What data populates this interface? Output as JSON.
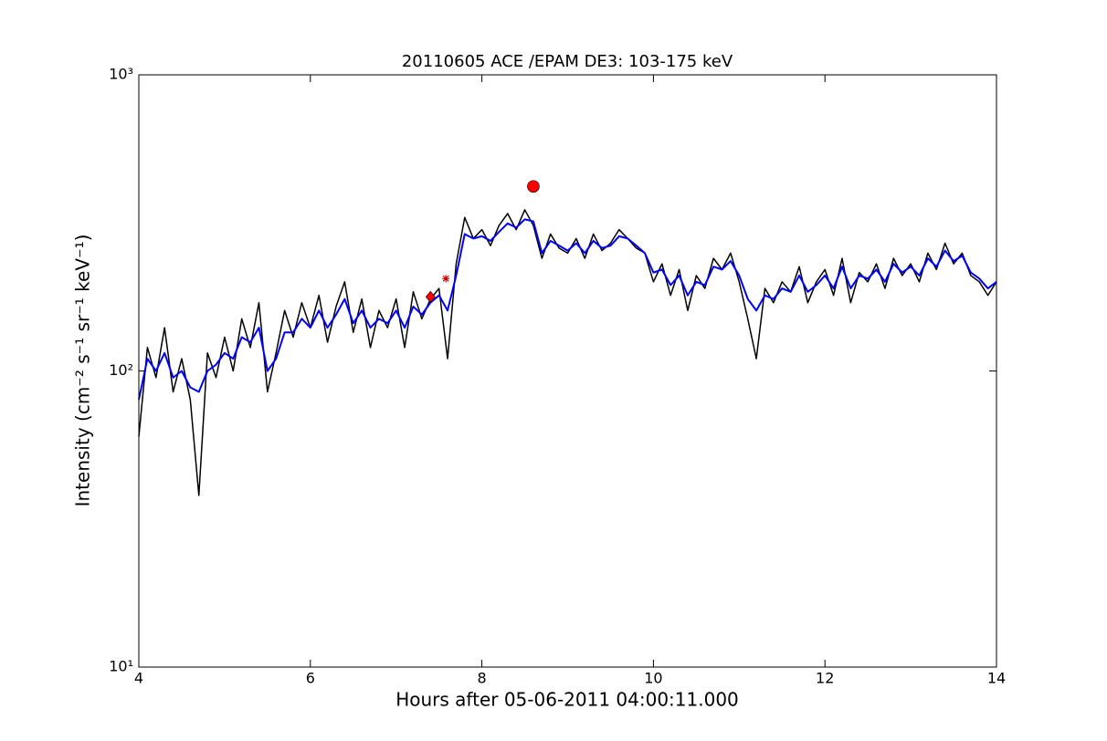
{
  "chart_data": {
    "type": "line",
    "title": "20110605 ACE /EPAM DE3: 103-175 keV",
    "x_label": "Hours after 05-06-2011 04:00:11.000",
    "y_label": "Intensity (cm⁻² s⁻¹ sr⁻¹ keV⁻¹)",
    "log_y": true,
    "grid": false,
    "xlim": [
      4,
      14
    ],
    "xticks": [
      4,
      6,
      8,
      10,
      12,
      14
    ],
    "ylim": [
      10,
      1000
    ],
    "yticks": [
      {
        "value": 10,
        "label": "10¹"
      },
      {
        "value": 100,
        "label": "10²"
      },
      {
        "value": 1000,
        "label": "10³"
      }
    ],
    "x": [
      4.0,
      4.1,
      4.2,
      4.3,
      4.4,
      4.5,
      4.6,
      4.7,
      4.8,
      4.9,
      5.0,
      5.1,
      5.2,
      5.3,
      5.4,
      5.5,
      5.6,
      5.7,
      5.8,
      5.9,
      6.0,
      6.1,
      6.2,
      6.3,
      6.4,
      6.5,
      6.6,
      6.7,
      6.8,
      6.9,
      7.0,
      7.1,
      7.2,
      7.3,
      7.4,
      7.5,
      7.6,
      7.7,
      7.8,
      7.9,
      8.0,
      8.1,
      8.2,
      8.3,
      8.4,
      8.5,
      8.6,
      8.7,
      8.8,
      8.9,
      9.0,
      9.1,
      9.2,
      9.3,
      9.4,
      9.5,
      9.6,
      9.7,
      9.8,
      9.9,
      10.0,
      10.1,
      10.2,
      10.3,
      10.4,
      10.5,
      10.6,
      10.7,
      10.8,
      10.9,
      11.0,
      11.1,
      11.2,
      11.3,
      11.4,
      11.5,
      11.6,
      11.7,
      11.8,
      11.9,
      12.0,
      12.1,
      12.2,
      12.3,
      12.4,
      12.5,
      12.6,
      12.7,
      12.8,
      12.9,
      13.0,
      13.1,
      13.2,
      13.3,
      13.4,
      13.5,
      13.6,
      13.7,
      13.8,
      13.9,
      14.0
    ],
    "series": [
      {
        "color": "#000000",
        "values": [
          60,
          120,
          95,
          140,
          85,
          110,
          80,
          38,
          115,
          95,
          130,
          100,
          150,
          120,
          170,
          85,
          115,
          160,
          130,
          170,
          140,
          180,
          125,
          165,
          200,
          135,
          175,
          120,
          160,
          140,
          175,
          120,
          185,
          150,
          175,
          190,
          110,
          230,
          330,
          280,
          300,
          265,
          310,
          340,
          300,
          350,
          310,
          240,
          290,
          260,
          250,
          280,
          240,
          290,
          255,
          270,
          300,
          280,
          260,
          250,
          200,
          230,
          180,
          220,
          160,
          210,
          190,
          240,
          220,
          250,
          200,
          150,
          110,
          190,
          170,
          200,
          185,
          225,
          170,
          200,
          220,
          180,
          240,
          170,
          215,
          200,
          230,
          190,
          240,
          210,
          230,
          200,
          250,
          220,
          270,
          230,
          250,
          210,
          200,
          180,
          200
        ]
      },
      {
        "color": "#0000ff",
        "values": [
          80,
          110,
          100,
          115,
          95,
          100,
          88,
          85,
          100,
          105,
          115,
          110,
          130,
          125,
          140,
          100,
          110,
          135,
          135,
          150,
          140,
          160,
          140,
          155,
          175,
          145,
          160,
          140,
          150,
          145,
          160,
          140,
          165,
          155,
          170,
          180,
          160,
          210,
          290,
          280,
          285,
          275,
          295,
          315,
          305,
          325,
          320,
          250,
          275,
          265,
          255,
          270,
          250,
          275,
          260,
          265,
          285,
          280,
          265,
          250,
          215,
          220,
          195,
          210,
          180,
          200,
          195,
          225,
          220,
          235,
          210,
          175,
          160,
          180,
          175,
          190,
          185,
          210,
          185,
          195,
          210,
          190,
          225,
          190,
          210,
          205,
          220,
          200,
          230,
          215,
          225,
          210,
          240,
          225,
          255,
          235,
          245,
          215,
          205,
          190,
          200
        ]
      }
    ],
    "markers": [
      {
        "x": 7.4,
        "y": 178,
        "color": "#ff0000",
        "shape": "diamond"
      },
      {
        "x": 7.58,
        "y": 205,
        "color": "#cc0000",
        "shape": "star"
      },
      {
        "x": 8.6,
        "y": 420,
        "color": "#ff0000",
        "shape": "circle"
      }
    ]
  }
}
